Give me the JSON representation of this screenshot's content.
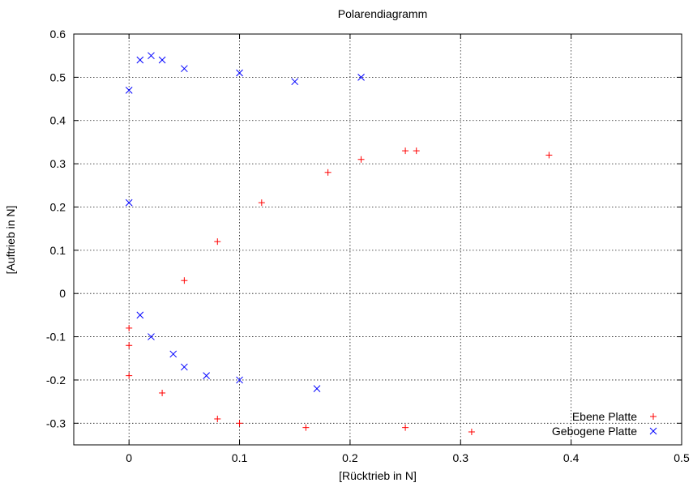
{
  "chart_data": {
    "type": "scatter",
    "title": "Polarendiagramm",
    "xlabel": "[Rücktrieb in N]",
    "ylabel": "[Auftrieb in N]",
    "xlim": [
      -0.05,
      0.5
    ],
    "ylim": [
      -0.35,
      0.6
    ],
    "xticks": [
      0,
      0.1,
      0.2,
      0.3,
      0.4,
      0.5
    ],
    "yticks": [
      -0.3,
      -0.2,
      -0.1,
      0,
      0.1,
      0.2,
      0.3,
      0.4,
      0.5,
      0.6
    ],
    "grid": true,
    "legend_position": "bottom-right",
    "series": [
      {
        "name": "Ebene Platte",
        "marker": "plus",
        "color": "#ff0000",
        "points": [
          [
            0.0,
            -0.08
          ],
          [
            0.0,
            -0.12
          ],
          [
            0.0,
            -0.19
          ],
          [
            0.03,
            -0.23
          ],
          [
            0.05,
            0.03
          ],
          [
            0.08,
            0.12
          ],
          [
            0.08,
            -0.29
          ],
          [
            0.1,
            -0.3
          ],
          [
            0.12,
            0.21
          ],
          [
            0.16,
            -0.31
          ],
          [
            0.18,
            0.28
          ],
          [
            0.21,
            0.31
          ],
          [
            0.25,
            0.33
          ],
          [
            0.26,
            0.33
          ],
          [
            0.25,
            -0.31
          ],
          [
            0.31,
            -0.32
          ],
          [
            0.38,
            0.32
          ]
        ]
      },
      {
        "name": "Gebogene Platte",
        "marker": "cross",
        "color": "#0000ff",
        "points": [
          [
            0.0,
            0.47
          ],
          [
            0.01,
            0.54
          ],
          [
            0.02,
            0.55
          ],
          [
            0.03,
            0.54
          ],
          [
            0.05,
            0.52
          ],
          [
            0.1,
            0.51
          ],
          [
            0.15,
            0.49
          ],
          [
            0.21,
            0.5
          ],
          [
            0.0,
            0.21
          ],
          [
            0.01,
            -0.05
          ],
          [
            0.02,
            -0.1
          ],
          [
            0.04,
            -0.14
          ],
          [
            0.05,
            -0.17
          ],
          [
            0.07,
            -0.19
          ],
          [
            0.1,
            -0.2
          ],
          [
            0.17,
            -0.22
          ]
        ]
      }
    ]
  }
}
